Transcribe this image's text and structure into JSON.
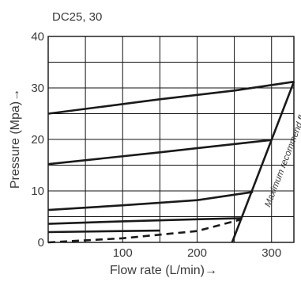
{
  "model_label": "DC25, 30",
  "chart_data": {
    "type": "line",
    "title": "DC25, 30",
    "xlabel": "Flow rate (L/min)→",
    "ylabel": "Pressure (Mpa)→",
    "xlim": [
      0,
      330
    ],
    "ylim": [
      0,
      40
    ],
    "x_ticks": [
      100,
      200,
      300
    ],
    "y_ticks": [
      0,
      10,
      20,
      30,
      40
    ],
    "grid": true,
    "annotations": [
      {
        "text": "Maximum recommend flow",
        "x": 305,
        "y": 12
      }
    ],
    "series": [
      {
        "style": "solid",
        "points": [
          [
            0,
            25.0
          ],
          [
            150,
            27.8
          ],
          [
            250,
            29.5
          ],
          [
            330,
            31.2
          ]
        ]
      },
      {
        "style": "solid",
        "points": [
          [
            0,
            15.2
          ],
          [
            150,
            17.5
          ],
          [
            300,
            19.9
          ]
        ]
      },
      {
        "style": "solid",
        "points": [
          [
            0,
            6.3
          ],
          [
            100,
            7.2
          ],
          [
            200,
            8.2
          ],
          [
            275,
            9.8
          ]
        ]
      },
      {
        "style": "solid",
        "points": [
          [
            0,
            3.6
          ],
          [
            100,
            4.1
          ],
          [
            200,
            4.5
          ],
          [
            260,
            4.7
          ]
        ]
      },
      {
        "style": "solid",
        "points": [
          [
            0,
            2.0
          ],
          [
            100,
            2.2
          ],
          [
            150,
            2.3
          ]
        ]
      },
      {
        "style": "dashed",
        "points": [
          [
            0,
            0.0
          ],
          [
            100,
            0.8
          ],
          [
            200,
            2.2
          ],
          [
            260,
            4.5
          ]
        ]
      },
      {
        "style": "solid",
        "points": [
          [
            247,
            0.0
          ],
          [
            330,
            31.2
          ]
        ]
      }
    ]
  }
}
